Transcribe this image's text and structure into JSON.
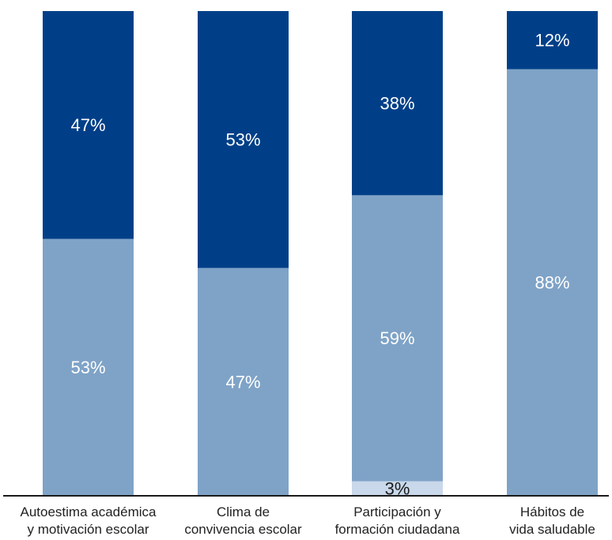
{
  "colors": {
    "series_dark": "#003f88",
    "series_mid": "#7fa3c7",
    "series_light": "#c9d8ea",
    "axis": "#1a1a1a",
    "label_light": "#ffffff",
    "label_dark": "#1a1a1a"
  },
  "chart_data": {
    "type": "bar",
    "stacked": true,
    "orientation": "vertical",
    "categories": [
      [
        "Autoestima académica",
        "y motivación escolar"
      ],
      [
        "Clima de",
        "convivencia escolar"
      ],
      [
        "Participación y",
        "formación ciudadana"
      ],
      [
        "Hábitos de",
        "vida saludable"
      ]
    ],
    "series": [
      {
        "color": "#c9d8ea",
        "values": [
          0,
          0,
          3,
          0
        ],
        "value_labels": [
          "",
          "",
          "3%",
          ""
        ],
        "label_color": "#1a1a1a"
      },
      {
        "color": "#7fa3c7",
        "values": [
          53,
          47,
          59,
          88
        ],
        "value_labels": [
          "53%",
          "47%",
          "59%",
          "88%"
        ],
        "label_color": "#ffffff"
      },
      {
        "color": "#003f88",
        "values": [
          47,
          53,
          38,
          12
        ],
        "value_labels": [
          "47%",
          "53%",
          "38%",
          "12%"
        ],
        "label_color": "#ffffff"
      }
    ],
    "ylim": [
      0,
      100
    ],
    "legend": "none",
    "grid": false
  }
}
